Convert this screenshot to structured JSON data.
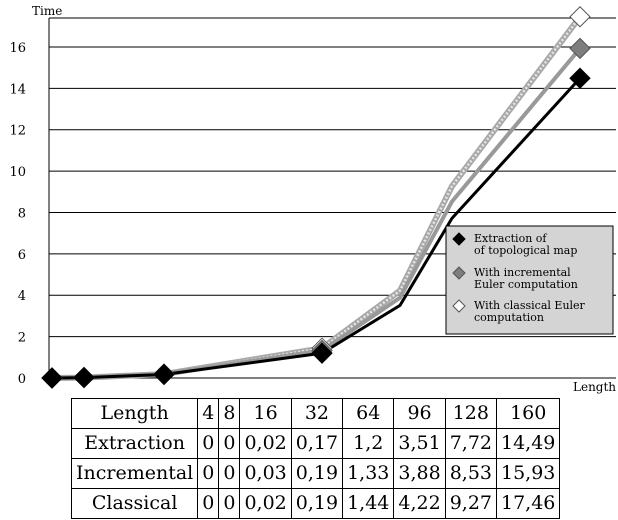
{
  "chart_data": {
    "type": "line",
    "ylabel": "Time",
    "xlabel": "Length",
    "ylim": [
      0,
      17.4
    ],
    "yticks": [
      "0",
      "2",
      "4",
      "6",
      "8",
      "10",
      "12",
      "14",
      "16"
    ],
    "x": [
      4,
      8,
      16,
      32,
      64,
      96,
      128,
      160
    ],
    "grid": "horizontal",
    "legend_position": "lower-right",
    "series": [
      {
        "name": "Extraction of of topological map",
        "legend_lines": [
          "Extraction of",
          "of topological map"
        ],
        "color": "#000000",
        "marker": "filled-diamond",
        "style": "solid-black",
        "values": [
          0,
          0,
          0.02,
          0.17,
          1.2,
          3.51,
          7.72,
          14.49
        ]
      },
      {
        "name": "With incremental Euler computation",
        "legend_lines": [
          "With incremental",
          "Euler computation"
        ],
        "color": "#8c8c8c",
        "marker": "gray-diamond",
        "style": "solid-gray",
        "values": [
          0,
          0,
          0.03,
          0.19,
          1.33,
          3.88,
          8.53,
          15.93
        ]
      },
      {
        "name": "With classical Euler computation",
        "legend_lines": [
          "With classical Euler",
          "computation"
        ],
        "color": "#ffffff",
        "marker": "hollow-diamond",
        "style": "hatched-light",
        "values": [
          0,
          0,
          0.02,
          0.19,
          1.44,
          4.22,
          9.27,
          17.46
        ]
      }
    ]
  },
  "table": {
    "header": [
      "Length",
      "4",
      "8",
      "16",
      "32",
      "64",
      "96",
      "128",
      "160"
    ],
    "rows": [
      [
        "Extraction",
        "0",
        "0",
        "0,02",
        "0,17",
        "1,2",
        "3,51",
        "7,72",
        "14,49"
      ],
      [
        "Incremental",
        "0",
        "0",
        "0,03",
        "0,19",
        "1,33",
        "3,88",
        "8,53",
        "15,93"
      ],
      [
        "Classical",
        "0",
        "0",
        "0,02",
        "0,19",
        "1,44",
        "4,22",
        "9,27",
        "17,46"
      ]
    ]
  }
}
